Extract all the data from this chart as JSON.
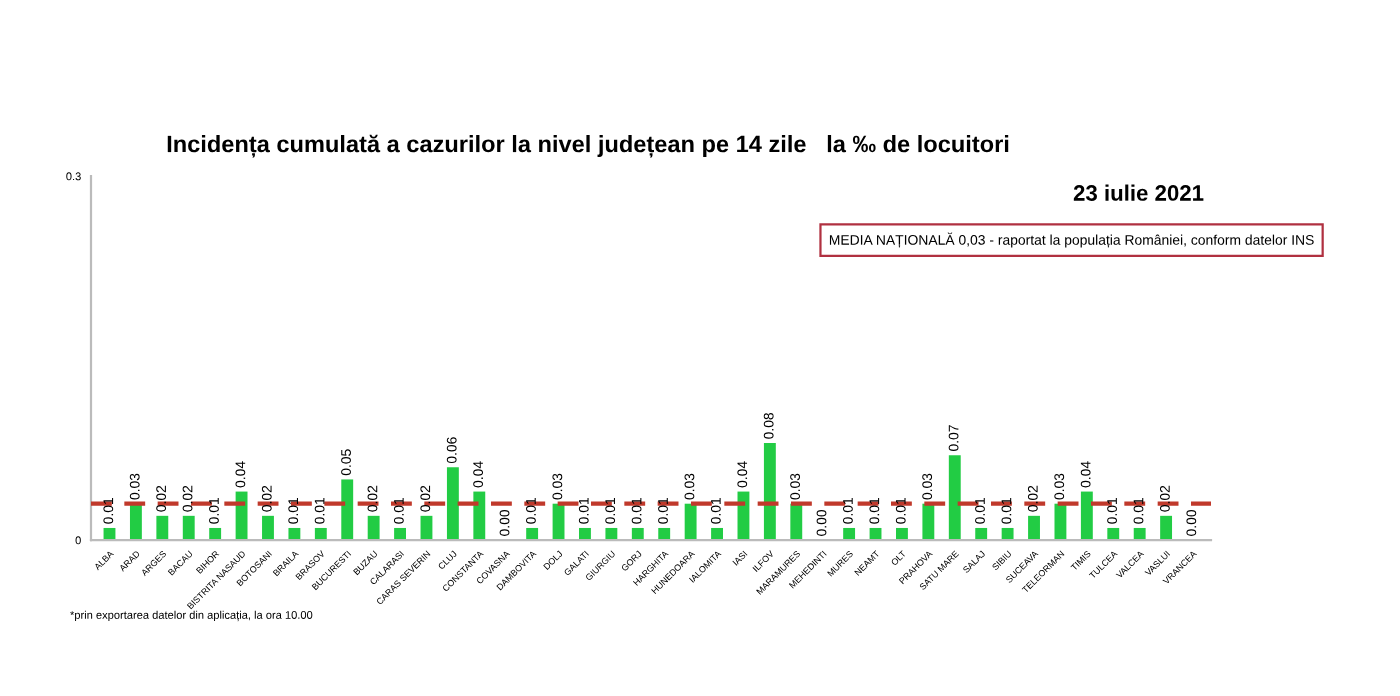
{
  "chart_data": {
    "type": "bar",
    "title": "Incidența cumulată a cazurilor la nivel județean pe 14 zile   la ‰ de locuitori",
    "subtitle": "23 iulie 2021",
    "categories": [
      "ALBA",
      "ARAD",
      "ARGES",
      "BACAU",
      "BIHOR",
      "BISTRITA NASAUD",
      "BOTOSANI",
      "BRAILA",
      "BRASOV",
      "BUCURESTI",
      "BUZAU",
      "CALARASI",
      "CARAS SEVERIN",
      "CLUJ",
      "CONSTANTA",
      "COVASNA",
      "DAMBOVITA",
      "DOLJ",
      "GALATI",
      "GIURGIU",
      "GORJ",
      "HARGHITA",
      "HUNEDOARA",
      "IALOMITA",
      "IASI",
      "ILFOV",
      "MARAMURES",
      "MEHEDINTI",
      "MURES",
      "NEAMT",
      "OLT",
      "PRAHOVA",
      "SATU MARE",
      "SALAJ",
      "SIBIU",
      "SUCEAVA",
      "TELEORMAN",
      "TIMIS",
      "TULCEA",
      "VALCEA",
      "VASLUI",
      "VRANCEA"
    ],
    "values": [
      0.01,
      0.03,
      0.02,
      0.02,
      0.01,
      0.04,
      0.02,
      0.01,
      0.01,
      0.05,
      0.02,
      0.01,
      0.02,
      0.06,
      0.04,
      0.0,
      0.01,
      0.03,
      0.01,
      0.01,
      0.01,
      0.01,
      0.03,
      0.01,
      0.04,
      0.08,
      0.03,
      0.0,
      0.01,
      0.01,
      0.01,
      0.03,
      0.07,
      0.01,
      0.01,
      0.02,
      0.03,
      0.04,
      0.01,
      0.01,
      0.02,
      0.0
    ],
    "value_labels": [
      "0.01",
      "0.03",
      "0.02",
      "0.02",
      "0.01",
      "0.04",
      "0.02",
      "0.01",
      "0.01",
      "0.05",
      "0.02",
      "0.01",
      "0.02",
      "0.06",
      "0.04",
      "0.00",
      "0.01",
      "0.03",
      "0.01",
      "0.01",
      "0.01",
      "0.01",
      "0.03",
      "0.01",
      "0.04",
      "0.08",
      "0.03",
      "0.00",
      "0.01",
      "0.01",
      "0.01",
      "0.03",
      "0.07",
      "0.01",
      "0.01",
      "0.02",
      "0.03",
      "0.04",
      "0.01",
      "0.01",
      "0.02",
      "0.00"
    ],
    "color": "#22cc44",
    "ylim": [
      0,
      0.3
    ],
    "yticks": [
      0,
      0.3
    ],
    "grid": false,
    "ref_lines": [
      {
        "axis": "y",
        "value": 0.03,
        "color": "#c0392b",
        "line_style": "dashed"
      }
    ],
    "annotations": [
      "MEDIA NAȚIONALĂ 0,03 - raportat la populația României, conform datelor INS",
      "*prin exportarea datelor din aplicația, la ora 10.00"
    ]
  }
}
